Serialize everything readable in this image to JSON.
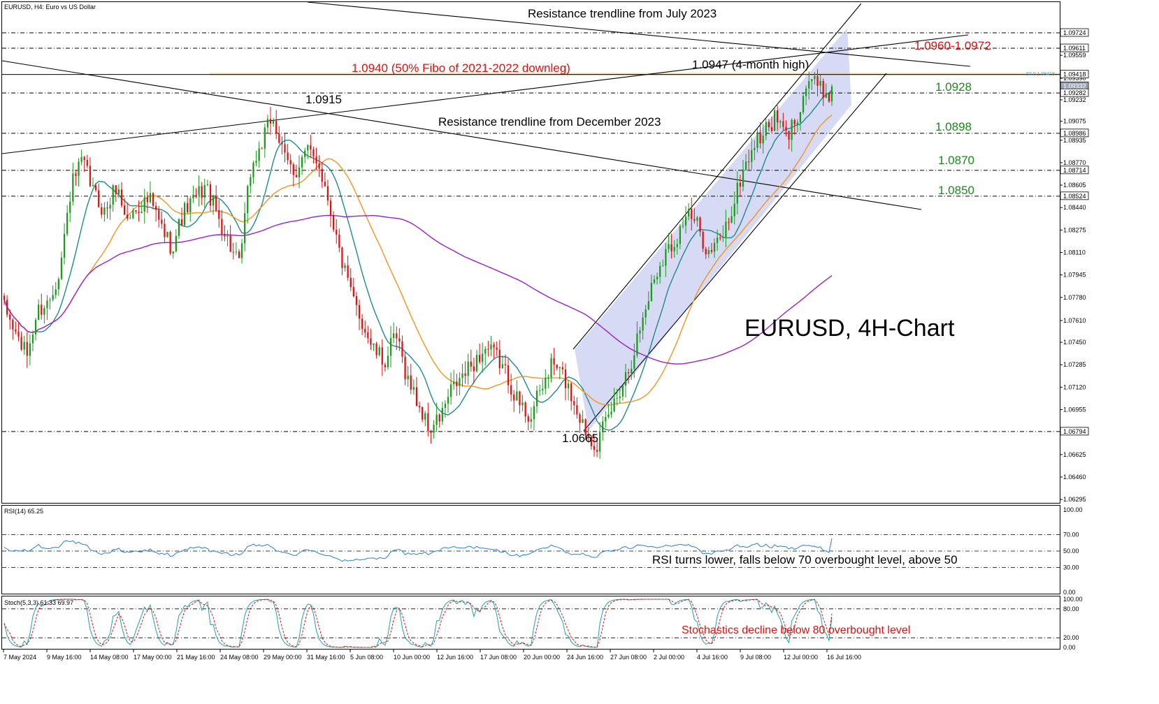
{
  "header": {
    "symbol_line": "EURUSD, H4:  Euro vs US Dollar",
    "rsi_label": "RSI(14) 65.25",
    "stoch_label": "Stoch(5,3,3) 61.33 69.97"
  },
  "colors": {
    "bull": "#1a9a1a",
    "bear": "#e01010",
    "sma_fast": "#1f8a8a",
    "sma_mid": "#f7931e",
    "sma_slow": "#9b1fd0",
    "channel_fill": "#c8cdf0",
    "rsi_line": "#2a7fd4",
    "stoch_main": "#1fa3a3",
    "stoch_signal": "#e01010",
    "fibo_line": "#e8c36a",
    "red_text": "#e01010",
    "green_text": "#1a8a1a"
  },
  "chart_data": [
    {
      "type": "candlestick",
      "title": "EURUSD, 4H-Chart",
      "ylim": [
        1.0627,
        1.0995
      ],
      "y_ticks": [
        "1.09724",
        "1.09559",
        "1.09390",
        "1.09232",
        "1.09075",
        "1.08935",
        "1.08770",
        "1.08605",
        "1.08440",
        "1.08275",
        "1.08110",
        "1.07945",
        "1.07780",
        "1.07610",
        "1.07450",
        "1.07285",
        "1.07120",
        "1.06955",
        "1.06790",
        "1.06625",
        "1.06460",
        "1.06295"
      ],
      "x_ticks": [
        "7 May 2024",
        "9 May 16:00",
        "14 May 08:00",
        "17 May 00:00",
        "21 May 16:00",
        "24 May 08:00",
        "29 May 00:00",
        "31 May 16:00",
        "5 Jun 08:00",
        "10 Jun 00:00",
        "12 Jun 16:00",
        "17 Jun 08:00",
        "20 Jun 00:00",
        "24 Jun 16:00",
        "27 Jun 08:00",
        "2 Jul 00:00",
        "4 Jul 16:00",
        "9 Jul 08:00",
        "12 Jul 00:00",
        "16 Jul 16:00"
      ],
      "close_path": [
        1.077,
        1.0752,
        1.0735,
        1.0768,
        1.0775,
        1.08,
        1.086,
        1.0878,
        1.0855,
        1.084,
        1.086,
        1.0835,
        1.0845,
        1.085,
        1.083,
        1.0815,
        1.084,
        1.085,
        1.086,
        1.084,
        1.082,
        1.08,
        1.087,
        1.089,
        1.0912,
        1.088,
        1.087,
        1.0885,
        1.088,
        1.085,
        1.081,
        1.078,
        1.076,
        1.074,
        1.073,
        1.075,
        1.072,
        1.07,
        1.068,
        1.069,
        1.071,
        1.072,
        1.073,
        1.074,
        1.0735,
        1.072,
        1.07,
        1.069,
        1.071,
        1.073,
        1.072,
        1.07,
        1.068,
        1.067,
        1.069,
        1.071,
        1.073,
        1.076,
        1.079,
        1.081,
        1.082,
        1.084,
        1.083,
        1.081,
        1.082,
        1.084,
        1.087,
        1.089,
        1.09,
        1.091,
        1.0895,
        1.0915,
        1.094,
        1.093,
        1.0928
      ],
      "price_levels": [
        {
          "value": 1.09724,
          "label": "1.09724",
          "style": "dash"
        },
        {
          "value": 1.09611,
          "label": "1.09611",
          "style": "dash"
        },
        {
          "value": 1.09418,
          "label": "1.09418",
          "style": "solid"
        },
        {
          "value": 1.09332,
          "label": "1.09332",
          "style": "current"
        },
        {
          "value": 1.09282,
          "label": "1.09282",
          "style": "dash"
        },
        {
          "value": 1.08986,
          "label": "1.08986",
          "style": "dash"
        },
        {
          "value": 1.08714,
          "label": "1.08714",
          "style": "dash"
        },
        {
          "value": 1.08524,
          "label": "1.08524",
          "style": "dash"
        },
        {
          "value": 1.06794,
          "label": "1.06794",
          "style": "dash"
        }
      ],
      "fibo_tag": "50.0 1.09418",
      "annotations": {
        "resistance_july": "Resistance trendline from July 2023",
        "resistance_december": "Resistance trendline from December 2023",
        "range_red": "1.0960-1.0972",
        "fibo": "1.0940 (50% Fibo of 2021-2022 downleg)",
        "high_4m": "1.0947 (4-month high)",
        "level_1_0915": "1.0915",
        "level_1_0928": "1.0928",
        "level_1_0898": "1.0898",
        "level_1_0870": "1.0870",
        "level_1_0850": "1.0850",
        "level_1_0665": "1.0665"
      }
    },
    {
      "type": "line",
      "name": "RSI(14)",
      "ylim": [
        0,
        100
      ],
      "y_ticks": [
        "100.00",
        "70.00",
        "50.00",
        "30.00",
        "0.00"
      ],
      "levels": [
        70,
        50,
        30
      ],
      "last": 65.25,
      "annotation": "RSI turns lower, falls below 70 overbought level, above 50"
    },
    {
      "type": "line",
      "name": "Stoch(5,3,3)",
      "ylim": [
        0,
        100
      ],
      "y_ticks": [
        "100.00",
        "80.00",
        "20.00",
        "0.00"
      ],
      "levels": [
        80,
        20
      ],
      "last_main": 61.33,
      "last_signal": 69.97,
      "annotation": "Stochastics decline below 80 overbought level"
    }
  ]
}
